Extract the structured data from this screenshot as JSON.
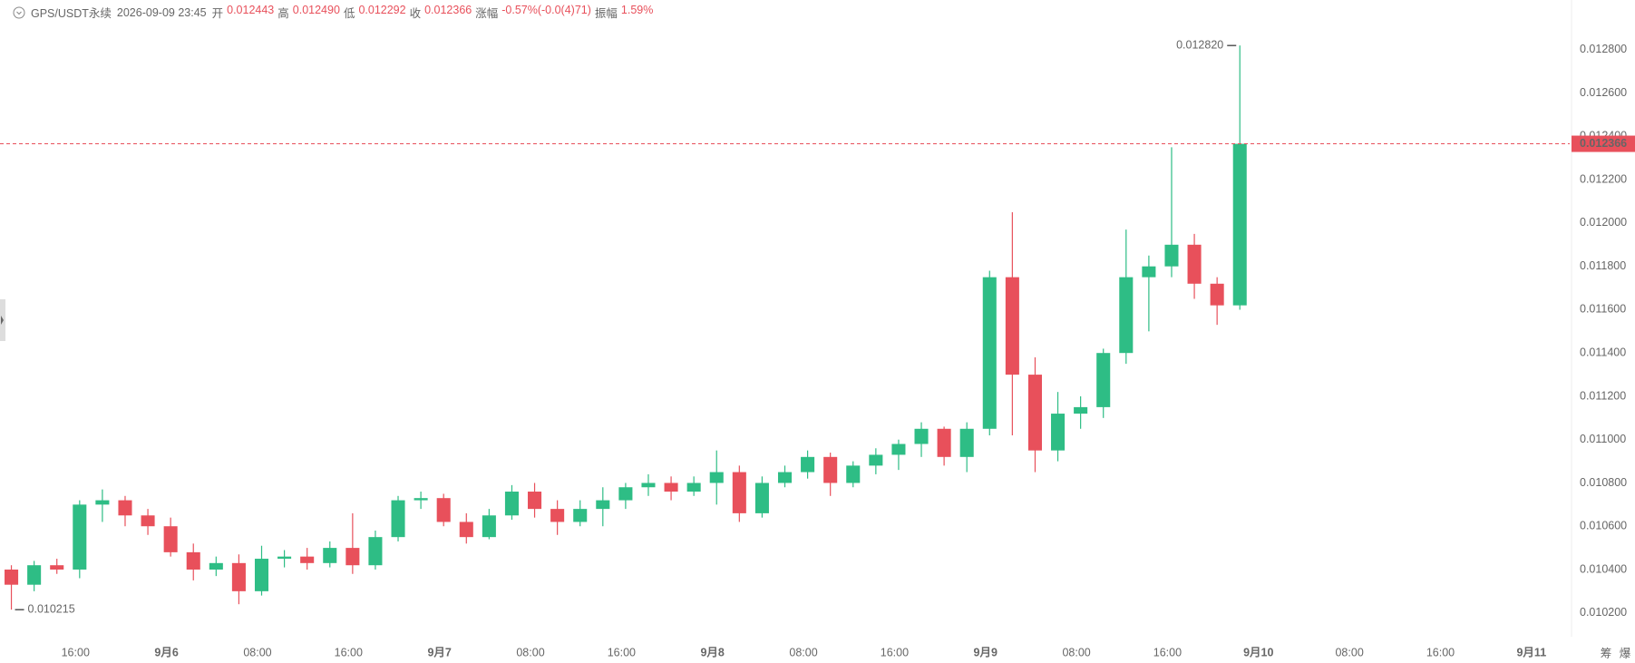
{
  "chart_data": {
    "type": "candlestick",
    "title": "GPS/USDT永续",
    "time": "2026-09-09 23:45",
    "info": [
      {
        "label": "开",
        "value": "0.012443"
      },
      {
        "label": "高",
        "value": "0.012490"
      },
      {
        "label": "低",
        "value": "0.012292"
      },
      {
        "label": "收",
        "value": "0.012366"
      },
      {
        "label": "涨幅",
        "value": "-0.57%(-0.0(4)71)"
      },
      {
        "label": "振幅",
        "value": "1.59%"
      }
    ],
    "categories": [
      null,
      null,
      null,
      "16:00",
      null,
      null,
      null,
      "9月6",
      null,
      null,
      null,
      "08:00",
      null,
      null,
      null,
      "16:00",
      null,
      null,
      null,
      "9月7",
      null,
      null,
      null,
      "08:00",
      null,
      null,
      null,
      "16:00",
      null,
      null,
      null,
      "9月8",
      null,
      null,
      null,
      "08:00",
      null,
      null,
      null,
      "16:00",
      null,
      null,
      null,
      "9月9",
      null,
      null,
      null,
      "08:00",
      null,
      null,
      null,
      "16:00",
      null,
      null,
      null,
      "9月10",
      null,
      null,
      null,
      "08:00",
      null,
      null,
      null,
      "16:00",
      null,
      null,
      null,
      "9月11",
      null
    ],
    "open": [
      0.0104,
      0.01033,
      0.01042,
      0.0104,
      0.0107,
      0.01072,
      0.01065,
      0.0106,
      0.01048,
      0.0104,
      0.01043,
      0.0103,
      0.01045,
      0.01046,
      0.01043,
      0.0105,
      0.01042,
      0.01055,
      0.01072,
      0.01073,
      0.01062,
      0.01055,
      0.01065,
      0.01076,
      0.01068,
      0.01062,
      0.01068,
      0.01072,
      0.01078,
      0.0108,
      0.01076,
      0.0108,
      0.01085,
      0.01066,
      0.0108,
      0.01085,
      0.01092,
      0.0108,
      0.01088,
      0.01093,
      0.01098,
      0.01105,
      0.01092,
      0.01105,
      0.01175,
      0.0113,
      0.01095,
      0.01112,
      0.01115,
      0.0114,
      0.01175,
      0.0118,
      0.0119,
      0.01172,
      0.01162,
      null,
      null,
      null,
      null,
      null,
      null,
      null,
      null,
      null,
      null,
      null,
      null,
      null,
      null
    ],
    "high": [
      0.01042,
      0.01044,
      0.01045,
      0.01072,
      0.01077,
      0.01074,
      0.01068,
      0.01064,
      0.01052,
      0.01046,
      0.01047,
      0.01051,
      0.01049,
      0.0105,
      0.01053,
      0.01066,
      0.01058,
      0.01074,
      0.01076,
      0.01075,
      0.01066,
      0.01068,
      0.01079,
      0.0108,
      0.01072,
      0.01072,
      0.01078,
      0.0108,
      0.01084,
      0.01083,
      0.01083,
      0.01095,
      0.01088,
      0.01083,
      0.01088,
      0.01095,
      0.01094,
      0.0109,
      0.01096,
      0.011,
      0.01108,
      0.01106,
      0.01108,
      0.01178,
      0.01205,
      0.01138,
      0.01122,
      0.0112,
      0.01142,
      0.01197,
      0.01185,
      0.01235,
      0.01195,
      0.01175,
      0.01282,
      null,
      null,
      null,
      null,
      null,
      null,
      null,
      null,
      null,
      null,
      null,
      null,
      null,
      null
    ],
    "low": [
      0.010215,
      0.0103,
      0.01038,
      0.01036,
      0.01062,
      0.0106,
      0.01056,
      0.01046,
      0.01035,
      0.01037,
      0.01024,
      0.01028,
      0.01041,
      0.0104,
      0.01041,
      0.01038,
      0.0104,
      0.01053,
      0.01068,
      0.0106,
      0.01052,
      0.01054,
      0.01063,
      0.01064,
      0.01056,
      0.0106,
      0.0106,
      0.01068,
      0.01074,
      0.01072,
      0.01074,
      0.0107,
      0.01062,
      0.01064,
      0.01078,
      0.01082,
      0.01074,
      0.01078,
      0.01084,
      0.01086,
      0.01092,
      0.01088,
      0.01085,
      0.01102,
      0.01102,
      0.01085,
      0.0109,
      0.01105,
      0.0111,
      0.01135,
      0.0115,
      0.01175,
      0.01165,
      0.01153,
      0.0116,
      null,
      null,
      null,
      null,
      null,
      null,
      null,
      null,
      null,
      null,
      null,
      null,
      null,
      null
    ],
    "close": [
      0.01033,
      0.01042,
      0.0104,
      0.0107,
      0.01072,
      0.01065,
      0.0106,
      0.01048,
      0.0104,
      0.01043,
      0.0103,
      0.01045,
      0.01046,
      0.01043,
      0.0105,
      0.01042,
      0.01055,
      0.01072,
      0.01073,
      0.01062,
      0.01055,
      0.01065,
      0.01076,
      0.01068,
      0.01062,
      0.01068,
      0.01072,
      0.01078,
      0.0108,
      0.01076,
      0.0108,
      0.01085,
      0.01066,
      0.0108,
      0.01085,
      0.01092,
      0.0108,
      0.01088,
      0.01093,
      0.01098,
      0.01105,
      0.01092,
      0.01105,
      0.01175,
      0.0113,
      0.01095,
      0.01112,
      0.01115,
      0.0114,
      0.01175,
      0.0118,
      0.0119,
      0.01172,
      0.01162,
      0.012366,
      null,
      null,
      null,
      null,
      null,
      null,
      null,
      null,
      null,
      null,
      null,
      null,
      null,
      null
    ],
    "up_color": "#2ebd85",
    "down_color": "#e8505b",
    "ylim": [
      0.01009,
      0.01303
    ],
    "yticks": [
      {
        "value": 0.0102,
        "label": "0.010200"
      },
      {
        "value": 0.0104,
        "label": "0.010400"
      },
      {
        "value": 0.0106,
        "label": "0.010600"
      },
      {
        "value": 0.0108,
        "label": "0.010800"
      },
      {
        "value": 0.011,
        "label": "0.011000"
      },
      {
        "value": 0.0112,
        "label": "0.011200"
      },
      {
        "value": 0.0114,
        "label": "0.011400"
      },
      {
        "value": 0.0116,
        "label": "0.011600"
      },
      {
        "value": 0.0118,
        "label": "0.011800"
      },
      {
        "value": 0.012,
        "label": "0.012000"
      },
      {
        "value": 0.0122,
        "label": "0.012200"
      },
      {
        "value": 0.0124,
        "label": "0.012400"
      },
      {
        "value": 0.0126,
        "label": "0.012600"
      },
      {
        "value": 0.0128,
        "label": "0.012800"
      }
    ],
    "max_label": {
      "value": 0.01282,
      "label": "0.012820"
    },
    "min_label": 0.010215,
    "last_price": 0.012366,
    "side_tools": [
      "筹",
      "爆"
    ]
  }
}
